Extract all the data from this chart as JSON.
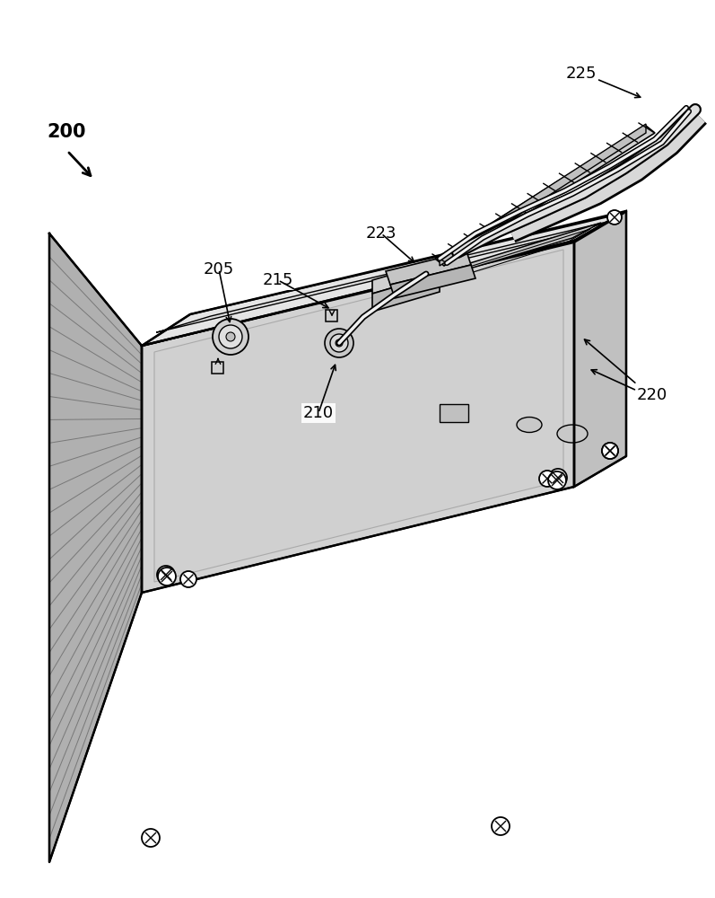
{
  "bg_color": "#ffffff",
  "line_color": "#000000",
  "face_top": "#e8e8e8",
  "face_front": "#d0d0d0",
  "face_right": "#c0c0c0",
  "face_fin": "#b8b8b8",
  "panel_inner": "#e2e2e2",
  "connector_gray": "#c8c8c8",
  "connector_dark": "#b0b0b0",
  "screw_white": "#ffffff",
  "lw_main": 1.8,
  "lw_thin": 0.9,
  "font_size": 13
}
